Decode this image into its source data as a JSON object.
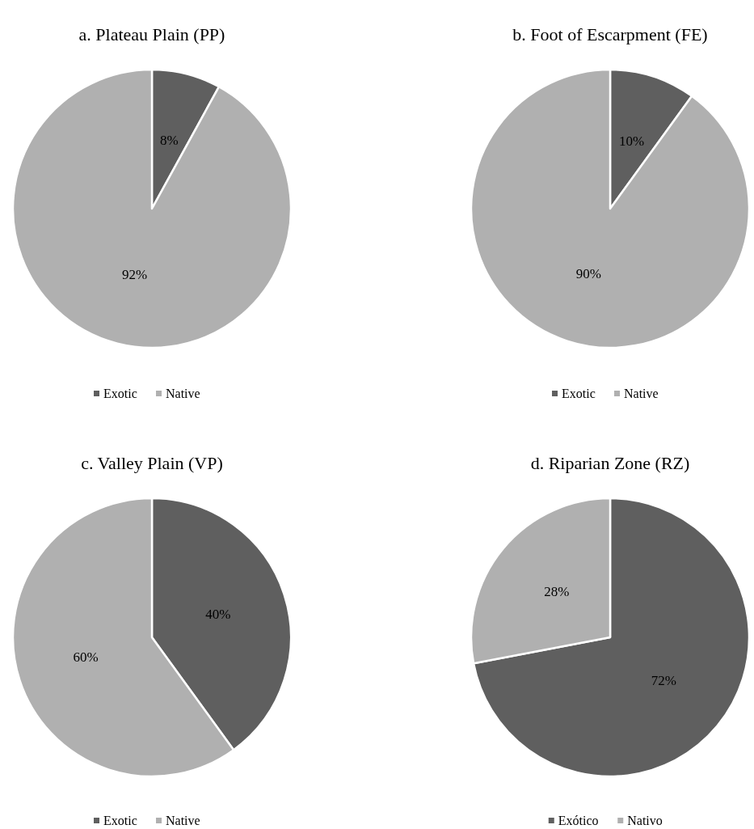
{
  "chart_data": [
    {
      "type": "pie",
      "title": "a. Plateau Plain (PP)",
      "categories": [
        "Exotic",
        "Native"
      ],
      "values": [
        8,
        92
      ],
      "value_labels": [
        "8%",
        "92%"
      ],
      "colors": [
        "#5f5f5f",
        "#b0b0b0"
      ],
      "legend": "bottom"
    },
    {
      "type": "pie",
      "title": "b. Foot of Escarpment (FE)",
      "categories": [
        "Exotic",
        "Native"
      ],
      "values": [
        10,
        90
      ],
      "value_labels": [
        "10%",
        "90%"
      ],
      "colors": [
        "#5f5f5f",
        "#b0b0b0"
      ],
      "legend": "bottom"
    },
    {
      "type": "pie",
      "title": "c. Valley Plain (VP)",
      "categories": [
        "Exotic",
        "Native"
      ],
      "values": [
        40,
        60
      ],
      "value_labels": [
        "40%",
        "60%"
      ],
      "colors": [
        "#5f5f5f",
        "#b0b0b0"
      ],
      "legend": "bottom"
    },
    {
      "type": "pie",
      "title": "d. Riparian Zone (RZ)",
      "categories": [
        "Exótico",
        "Nativo"
      ],
      "values": [
        72,
        28
      ],
      "value_labels": [
        "72%",
        "28%"
      ],
      "colors": [
        "#5f5f5f",
        "#b0b0b0"
      ],
      "legend": "bottom"
    }
  ]
}
